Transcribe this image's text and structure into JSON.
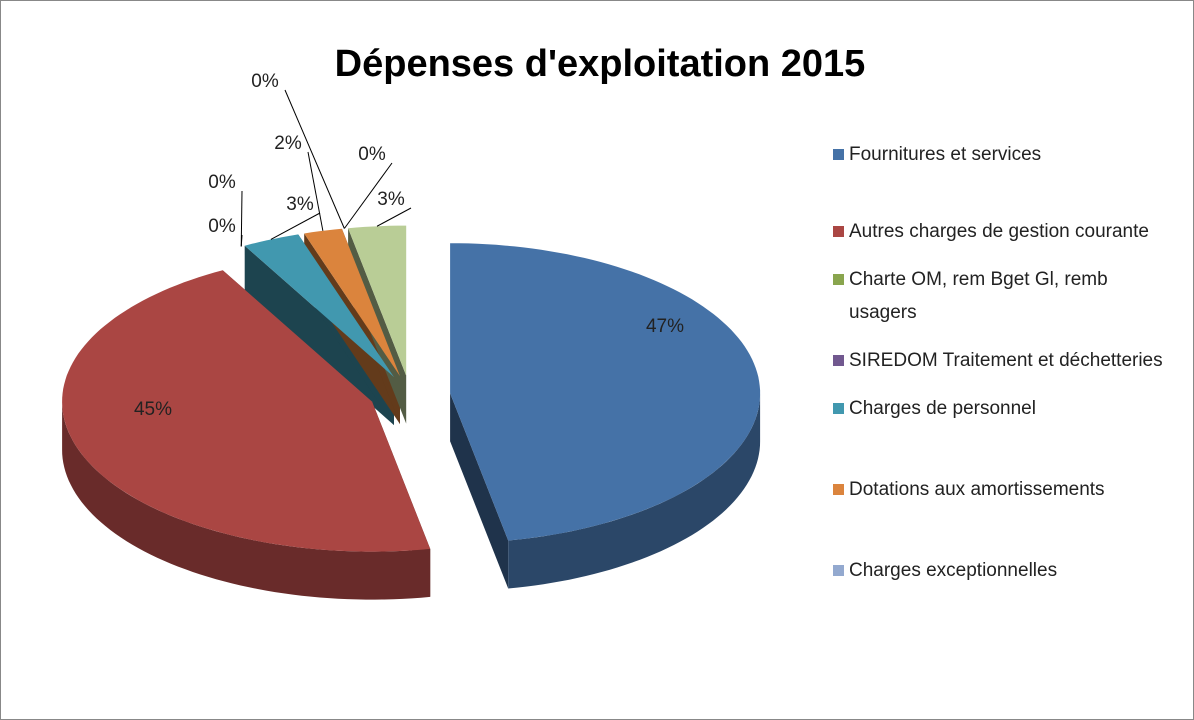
{
  "chart_data": {
    "type": "pie",
    "title": "Dépenses d'exploitation 2015",
    "categories": [
      "Fournitures et services",
      "Autres charges de gestion courante",
      "Charte OM, rem Bget Gl, remb usagers",
      "SIREDOM Traitement et déchetteries",
      "Charges de personnel",
      "Dotations aux amortissements",
      "Charges exceptionnelles",
      null,
      null
    ],
    "values": [
      47,
      45,
      0,
      0,
      3,
      2,
      0,
      0,
      3
    ],
    "value_labels": [
      "47%",
      "45%",
      "0%",
      "0%",
      "3%",
      "2%",
      "0%",
      "0%",
      "3%"
    ],
    "colors": [
      "#4572a7",
      "#aa4643",
      "#89a54e",
      "#71588f",
      "#4198af",
      "#db843d",
      "#93a9cf",
      "#d19392",
      "#b9cd96"
    ],
    "legend": "right"
  }
}
